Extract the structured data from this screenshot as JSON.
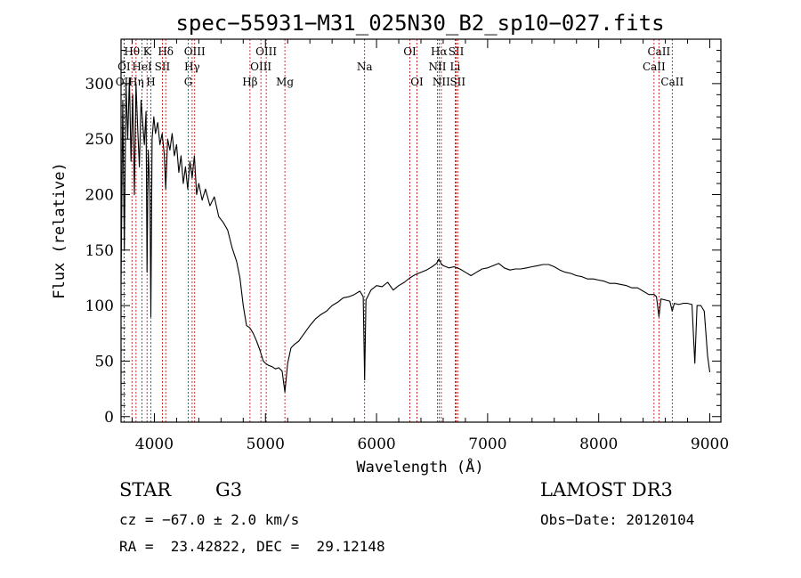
{
  "chart_data": {
    "type": "line",
    "title": "spec−55931−M31_025N30_B2_sp10−027.fits",
    "xlabel": "Wavelength (Å)",
    "ylabel": "Flux (relative)",
    "xlim": [
      3700,
      9100
    ],
    "ylim": [
      -5,
      340
    ],
    "x_ticks": [
      4000,
      5000,
      6000,
      7000,
      8000,
      9000
    ],
    "y_ticks": [
      0,
      50,
      100,
      150,
      200,
      250,
      300
    ],
    "grid": false,
    "series": [
      {
        "name": "flux",
        "points": [
          [
            3700,
            120
          ],
          [
            3715,
            285
          ],
          [
            3730,
            150
          ],
          [
            3745,
            300
          ],
          [
            3760,
            250
          ],
          [
            3775,
            305
          ],
          [
            3790,
            230
          ],
          [
            3805,
            290
          ],
          [
            3820,
            200
          ],
          [
            3835,
            300
          ],
          [
            3850,
            260
          ],
          [
            3865,
            225
          ],
          [
            3880,
            285
          ],
          [
            3895,
            265
          ],
          [
            3910,
            245
          ],
          [
            3925,
            275
          ],
          [
            3934,
            130
          ],
          [
            3945,
            240
          ],
          [
            3960,
            200
          ],
          [
            3968,
            90
          ],
          [
            3980,
            250
          ],
          [
            3995,
            270
          ],
          [
            4010,
            255
          ],
          [
            4030,
            265
          ],
          [
            4050,
            245
          ],
          [
            4070,
            255
          ],
          [
            4090,
            235
          ],
          [
            4102,
            205
          ],
          [
            4120,
            250
          ],
          [
            4140,
            240
          ],
          [
            4160,
            255
          ],
          [
            4180,
            235
          ],
          [
            4200,
            245
          ],
          [
            4220,
            220
          ],
          [
            4240,
            235
          ],
          [
            4260,
            210
          ],
          [
            4280,
            225
          ],
          [
            4300,
            205
          ],
          [
            4320,
            230
          ],
          [
            4340,
            215
          ],
          [
            4360,
            235
          ],
          [
            4380,
            200
          ],
          [
            4400,
            210
          ],
          [
            4430,
            195
          ],
          [
            4460,
            205
          ],
          [
            4500,
            190
          ],
          [
            4540,
            198
          ],
          [
            4580,
            180
          ],
          [
            4620,
            175
          ],
          [
            4660,
            168
          ],
          [
            4700,
            152
          ],
          [
            4740,
            140
          ],
          [
            4770,
            125
          ],
          [
            4800,
            100
          ],
          [
            4830,
            82
          ],
          [
            4860,
            80
          ],
          [
            4890,
            75
          ],
          [
            4920,
            68
          ],
          [
            4950,
            60
          ],
          [
            4980,
            50
          ],
          [
            5000,
            48
          ],
          [
            5030,
            46
          ],
          [
            5060,
            45
          ],
          [
            5090,
            43
          ],
          [
            5120,
            44
          ],
          [
            5150,
            41
          ],
          [
            5175,
            22
          ],
          [
            5200,
            48
          ],
          [
            5230,
            62
          ],
          [
            5260,
            65
          ],
          [
            5300,
            68
          ],
          [
            5350,
            75
          ],
          [
            5400,
            82
          ],
          [
            5450,
            88
          ],
          [
            5500,
            92
          ],
          [
            5550,
            95
          ],
          [
            5600,
            100
          ],
          [
            5650,
            103
          ],
          [
            5700,
            107
          ],
          [
            5750,
            108
          ],
          [
            5800,
            110
          ],
          [
            5850,
            113
          ],
          [
            5880,
            108
          ],
          [
            5893,
            33
          ],
          [
            5905,
            105
          ],
          [
            5950,
            114
          ],
          [
            6000,
            118
          ],
          [
            6050,
            117
          ],
          [
            6100,
            121
          ],
          [
            6150,
            114
          ],
          [
            6200,
            118
          ],
          [
            6250,
            121
          ],
          [
            6300,
            125
          ],
          [
            6350,
            128
          ],
          [
            6400,
            130
          ],
          [
            6450,
            132
          ],
          [
            6500,
            135
          ],
          [
            6540,
            138
          ],
          [
            6563,
            142
          ],
          [
            6580,
            138
          ],
          [
            6600,
            136
          ],
          [
            6650,
            134
          ],
          [
            6700,
            135
          ],
          [
            6750,
            133
          ],
          [
            6800,
            130
          ],
          [
            6850,
            127
          ],
          [
            6900,
            130
          ],
          [
            6950,
            133
          ],
          [
            7000,
            134
          ],
          [
            7050,
            136
          ],
          [
            7100,
            138
          ],
          [
            7150,
            134
          ],
          [
            7200,
            132
          ],
          [
            7250,
            133
          ],
          [
            7300,
            133
          ],
          [
            7350,
            134
          ],
          [
            7400,
            135
          ],
          [
            7450,
            136
          ],
          [
            7500,
            137
          ],
          [
            7550,
            137
          ],
          [
            7600,
            135
          ],
          [
            7650,
            132
          ],
          [
            7700,
            130
          ],
          [
            7750,
            129
          ],
          [
            7800,
            127
          ],
          [
            7850,
            126
          ],
          [
            7900,
            124
          ],
          [
            7950,
            124
          ],
          [
            8000,
            123
          ],
          [
            8050,
            122
          ],
          [
            8100,
            120
          ],
          [
            8150,
            120
          ],
          [
            8200,
            119
          ],
          [
            8250,
            118
          ],
          [
            8300,
            116
          ],
          [
            8350,
            116
          ],
          [
            8400,
            113
          ],
          [
            8450,
            110
          ],
          [
            8498,
            110
          ],
          [
            8520,
            108
          ],
          [
            8542,
            90
          ],
          [
            8560,
            106
          ],
          [
            8600,
            105
          ],
          [
            8640,
            104
          ],
          [
            8662,
            95
          ],
          [
            8680,
            102
          ],
          [
            8720,
            101
          ],
          [
            8760,
            102
          ],
          [
            8800,
            102
          ],
          [
            8840,
            101
          ],
          [
            8865,
            48
          ],
          [
            8885,
            100
          ],
          [
            8920,
            100
          ],
          [
            8950,
            95
          ],
          [
            8980,
            55
          ],
          [
            9000,
            40
          ]
        ]
      }
    ],
    "emission_lines": [
      {
        "label": "Hθ",
        "wavelength": 3798,
        "row": 0
      },
      {
        "label": "K",
        "wavelength": 3934,
        "row": 0
      },
      {
        "label": "Hδ",
        "wavelength": 4102,
        "row": 0
      },
      {
        "label": "OIII",
        "wavelength": 4363,
        "row": 0
      },
      {
        "label": "OIII",
        "wavelength": 5007,
        "row": 0
      },
      {
        "label": "OI",
        "wavelength": 6300,
        "row": 0
      },
      {
        "label": "Hα",
        "wavelength": 6563,
        "row": 0
      },
      {
        "label": "SII",
        "wavelength": 6717,
        "row": 0
      },
      {
        "label": "CaII",
        "wavelength": 8542,
        "row": 0
      },
      {
        "label": "OI",
        "wavelength": 3727,
        "row": 1
      },
      {
        "label": "HeI",
        "wavelength": 3889,
        "row": 1
      },
      {
        "label": "SII",
        "wavelength": 4072,
        "row": 1
      },
      {
        "label": "Hγ",
        "wavelength": 4340,
        "row": 1
      },
      {
        "label": "OIII",
        "wavelength": 4959,
        "row": 1
      },
      {
        "label": "Na",
        "wavelength": 5893,
        "row": 1
      },
      {
        "label": "NII",
        "wavelength": 6548,
        "row": 1
      },
      {
        "label": "Li",
        "wavelength": 6708,
        "row": 1
      },
      {
        "label": "CaII",
        "wavelength": 8498,
        "row": 1
      },
      {
        "label": "OII",
        "wavelength": 3727,
        "row": 2
      },
      {
        "label": "Hη",
        "wavelength": 3835,
        "row": 2
      },
      {
        "label": "H",
        "wavelength": 3968,
        "row": 2
      },
      {
        "label": "G",
        "wavelength": 4305,
        "row": 2
      },
      {
        "label": "Hβ",
        "wavelength": 4861,
        "row": 2
      },
      {
        "label": "Mg",
        "wavelength": 5175,
        "row": 2
      },
      {
        "label": "OI",
        "wavelength": 6364,
        "row": 2
      },
      {
        "label": "NII",
        "wavelength": 6583,
        "row": 2
      },
      {
        "label": "SII",
        "wavelength": 6731,
        "row": 2
      },
      {
        "label": "CaII",
        "wavelength": 8662,
        "row": 2
      }
    ],
    "colors": {
      "emission_line": "#c00000",
      "spectrum": "#000000"
    }
  },
  "info": {
    "object_class": "STAR",
    "subclass": "G3",
    "survey": "LAMOST DR3",
    "velocity": "cz = −67.0 ± 2.0 km/s",
    "obs_date": "Obs−Date: 20120104",
    "coords": "RA =  23.42822, DEC =  29.12148"
  }
}
